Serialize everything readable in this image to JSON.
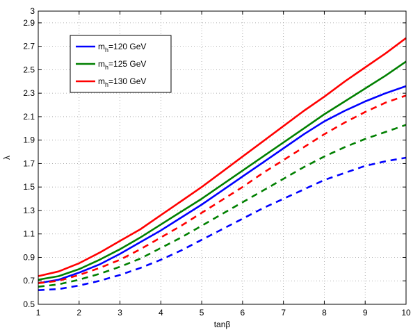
{
  "chart_data": {
    "type": "line",
    "xlabel": "tanβ",
    "ylabel": "λ",
    "xlim": [
      1,
      10
    ],
    "ylim": [
      0.5,
      3.0
    ],
    "xticks": [
      1,
      2,
      3,
      4,
      5,
      6,
      7,
      8,
      9,
      10
    ],
    "yticks": [
      0.5,
      0.7,
      0.9,
      1.1,
      1.3,
      1.5,
      1.7,
      1.9,
      2.1,
      2.3,
      2.5,
      2.7,
      2.9,
      3.0
    ],
    "ytick_labels": [
      "0.5",
      "0.7",
      "0.9",
      "1.1",
      "1.3",
      "1.5",
      "1.7",
      "1.9",
      "2.1",
      "2.3",
      "2.5",
      "2.7",
      "2.9",
      "3"
    ],
    "grid": true,
    "legend_position": "top-left",
    "x": [
      1,
      1.5,
      2,
      2.5,
      3,
      3.5,
      4,
      4.5,
      5,
      5.5,
      6,
      6.5,
      7,
      7.5,
      8,
      8.5,
      9,
      9.5,
      10
    ],
    "series": [
      {
        "name": "m_h=120 GeV",
        "legend_main": "m",
        "legend_sub": "h",
        "legend_rest": "=120 GeV",
        "color": "#0000ff",
        "style": "solid",
        "in_legend": true,
        "values": [
          0.68,
          0.71,
          0.77,
          0.84,
          0.93,
          1.03,
          1.13,
          1.24,
          1.35,
          1.47,
          1.59,
          1.71,
          1.83,
          1.95,
          2.06,
          2.15,
          2.23,
          2.3,
          2.36
        ]
      },
      {
        "name": "m_h=125 GeV",
        "legend_main": "m",
        "legend_sub": "h",
        "legend_rest": "=125 GeV",
        "color": "#008000",
        "style": "solid",
        "in_legend": true,
        "values": [
          0.71,
          0.74,
          0.8,
          0.88,
          0.97,
          1.07,
          1.18,
          1.29,
          1.4,
          1.52,
          1.64,
          1.76,
          1.88,
          2.0,
          2.12,
          2.23,
          2.34,
          2.45,
          2.57
        ]
      },
      {
        "name": "m_h=130 GeV",
        "legend_main": "m",
        "legend_sub": "h",
        "legend_rest": "=130 GeV",
        "color": "#ff0000",
        "style": "solid",
        "in_legend": true,
        "values": [
          0.74,
          0.78,
          0.85,
          0.94,
          1.04,
          1.14,
          1.26,
          1.38,
          1.5,
          1.63,
          1.76,
          1.89,
          2.02,
          2.15,
          2.27,
          2.4,
          2.52,
          2.64,
          2.77
        ]
      },
      {
        "color": "#0000ff",
        "style": "dashed",
        "in_legend": false,
        "values": [
          0.62,
          0.63,
          0.66,
          0.7,
          0.75,
          0.81,
          0.88,
          0.96,
          1.05,
          1.14,
          1.23,
          1.32,
          1.4,
          1.48,
          1.56,
          1.62,
          1.68,
          1.72,
          1.75
        ]
      },
      {
        "color": "#008000",
        "style": "dashed",
        "in_legend": false,
        "values": [
          0.65,
          0.67,
          0.71,
          0.76,
          0.82,
          0.89,
          0.98,
          1.07,
          1.17,
          1.27,
          1.37,
          1.47,
          1.57,
          1.67,
          1.76,
          1.84,
          1.91,
          1.97,
          2.03
        ]
      },
      {
        "color": "#ff0000",
        "style": "dashed",
        "in_legend": false,
        "values": [
          0.68,
          0.7,
          0.75,
          0.81,
          0.88,
          0.97,
          1.07,
          1.17,
          1.28,
          1.39,
          1.5,
          1.62,
          1.73,
          1.84,
          1.95,
          2.05,
          2.14,
          2.22,
          2.28
        ]
      }
    ]
  }
}
